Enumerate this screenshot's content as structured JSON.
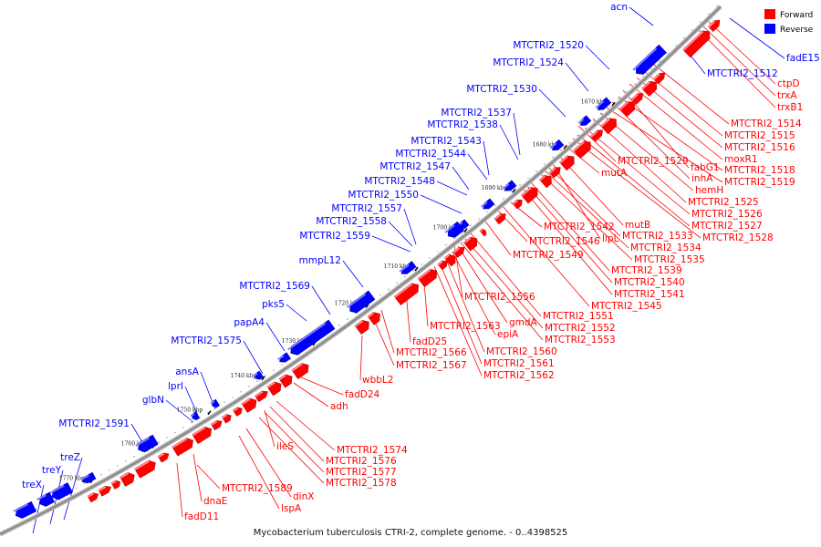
{
  "caption": "Mycobacterium tuberculosis CTRI-2, complete genome. - 0..4398525",
  "legend": [
    {
      "label": "Forward",
      "color": "#ff0000"
    },
    {
      "label": "Reverse",
      "color": "#0000ff"
    }
  ],
  "colors": {
    "forward": "#ff0000",
    "reverse": "#0000ff",
    "backbone": "#8c8c8c"
  },
  "ticks": [
    "1670 kbp",
    "1680 kbp",
    "1690 kbp",
    "1700 kbp",
    "1710 kbp",
    "1720 kbp",
    "1730 kbp",
    "1740 kbp",
    "1750 kbp",
    "1760 kbp",
    "1770 kbp"
  ],
  "reverse_labels": [
    "acn",
    "fadE15",
    "MTCTRI2_1512",
    "MTCTRI2_1520",
    "MTCTRI2_1524",
    "MTCTRI2_1530",
    "MTCTRI2_1537",
    "MTCTRI2_1538",
    "MTCTRI2_1543",
    "MTCTRI2_1544",
    "MTCTRI2_1547",
    "MTCTRI2_1548",
    "MTCTRI2_1550",
    "MTCTRI2_1557",
    "MTCTRI2_1558",
    "MTCTRI2_1559",
    "mmpL12",
    "MTCTRI2_1569",
    "pks5",
    "papA4",
    "MTCTRI2_1575",
    "ansA",
    "lprI",
    "glbN",
    "MTCTRI2_1591",
    "treZ",
    "treY",
    "treX"
  ],
  "forward_labels": [
    "ctpD",
    "trxA",
    "trxB1",
    "MTCTRI2_1514",
    "MTCTRI2_1515",
    "MTCTRI2_1516",
    "moxR1",
    "fabG1",
    "MTCTRI2_1518",
    "inhA",
    "MTCTRI2_1519",
    "hemH",
    "MTCTRI2_1525",
    "MTCTRI2_1526",
    "MTCTRI2_1527",
    "MTCTRI2_1528",
    "MTCTRI2_1529",
    "mutA",
    "mutB",
    "lipL",
    "MTCTRI2_1533",
    "MTCTRI2_1534",
    "MTCTRI2_1535",
    "MTCTRI2_1542",
    "MTCTRI2_1546",
    "MTCTRI2_1549",
    "MTCTRI2_1539",
    "MTCTRI2_1540",
    "MTCTRI2_1541",
    "MTCTRI2_1545",
    "MTCTRI2_1556",
    "MTCTRI2_1551",
    "MTCTRI2_1552",
    "MTCTRI2_1553",
    "gmdA",
    "epiA",
    "MTCTRI2_1563",
    "fadD25",
    "MTCTRI2_1560",
    "MTCTRI2_1561",
    "MTCTRI2_1562",
    "MTCTRI2_1566",
    "MTCTRI2_1567",
    "wbbL2",
    "fadD24",
    "adh",
    "MTCTRI2_1574",
    "ileS",
    "MTCTRI2_1576",
    "MTCTRI2_1577",
    "MTCTRI2_1578",
    "dinX",
    "MTCTRI2_1589",
    "lspA",
    "dnaE",
    "fadD11"
  ]
}
